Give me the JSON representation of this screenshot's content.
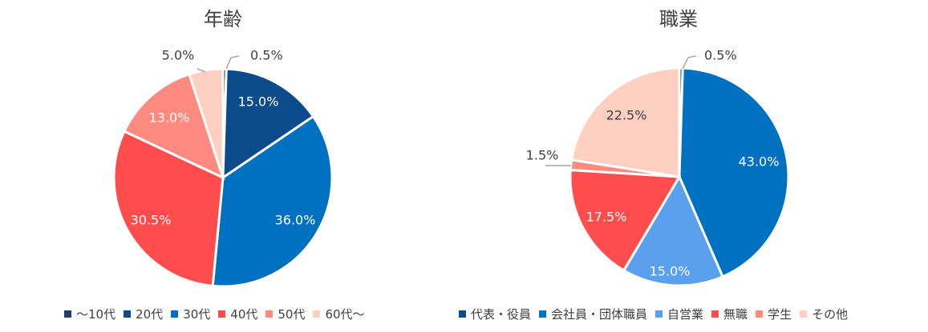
{
  "chart_data": [
    {
      "type": "pie",
      "title": "年齢",
      "categories": [
        "～10代",
        "20代",
        "30代",
        "40代",
        "50代",
        "60代～"
      ],
      "values": [
        0.5,
        15.0,
        36.0,
        30.5,
        13.0,
        5.0
      ],
      "labels": [
        "0.5%",
        "15.0%",
        "36.0%",
        "30.5%",
        "13.0%",
        "5.0%"
      ],
      "colors": [
        "#1f3f6f",
        "#0b4a8b",
        "#0070c0",
        "#ff4d4d",
        "#ff8a80",
        "#ffcfc2"
      ],
      "legend": "bottom"
    },
    {
      "type": "pie",
      "title": "職業",
      "categories": [
        "代表・役員",
        "会社員・団体職員",
        "自営業",
        "無職",
        "学生",
        "その他"
      ],
      "values": [
        0.5,
        43.0,
        15.0,
        17.5,
        1.5,
        22.5
      ],
      "labels": [
        "0.5%",
        "43.0%",
        "15.0%",
        "17.5%",
        "1.5%",
        "22.5%"
      ],
      "colors": [
        "#0b4a8b",
        "#0070c0",
        "#5aa0ee",
        "#ff4d4d",
        "#ff8a80",
        "#ffcfc2"
      ],
      "legend": "bottom"
    }
  ]
}
